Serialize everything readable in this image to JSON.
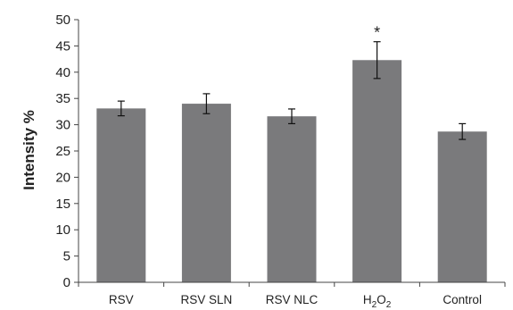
{
  "chart_data": {
    "type": "bar",
    "title": "",
    "xlabel": "",
    "ylabel": "Intensity %",
    "ylim": [
      0,
      50
    ],
    "yticks": [
      0,
      5,
      10,
      15,
      20,
      25,
      30,
      35,
      40,
      45,
      50
    ],
    "grid": false,
    "legend": "none",
    "bar_color": "#7a7a7c",
    "categories": [
      {
        "label": "RSV"
      },
      {
        "label": "RSV SLN"
      },
      {
        "label": "RSV NLC"
      },
      {
        "label": "H",
        "sub1": "2",
        "mid": "O",
        "sub2": "2"
      },
      {
        "label": "Control"
      }
    ],
    "values": [
      33.1,
      34.0,
      31.6,
      42.3,
      28.7
    ],
    "errors": [
      1.4,
      1.9,
      1.4,
      3.5,
      1.5
    ],
    "annotations": [
      {
        "category_index": 3,
        "text": "*"
      }
    ]
  }
}
